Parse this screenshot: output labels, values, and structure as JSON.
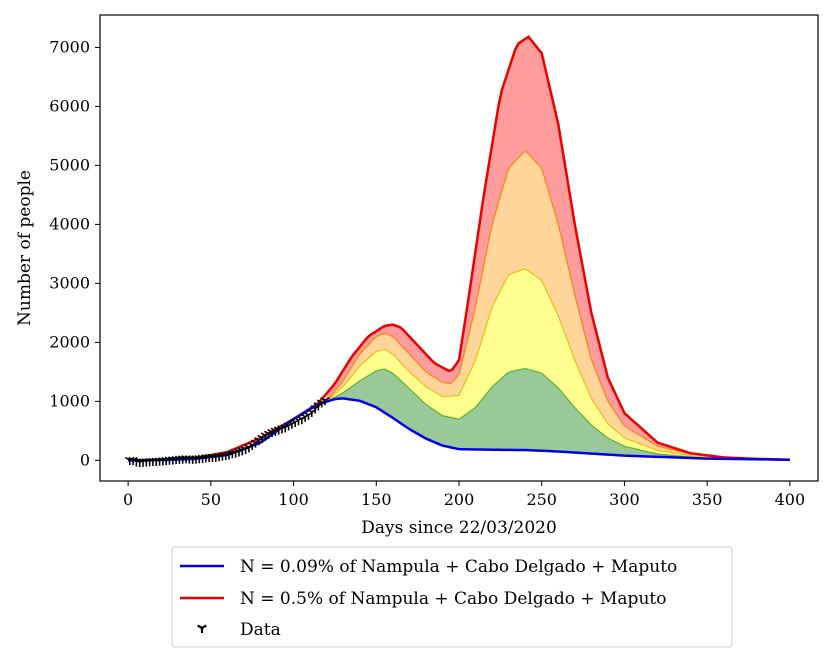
{
  "chart_data": {
    "type": "area",
    "title": "",
    "xlabel": "Days since 22/03/2020",
    "ylabel": "Number of people",
    "xlim": [
      -17,
      417
    ],
    "ylim": [
      -350,
      7550
    ],
    "xticks": [
      0,
      50,
      100,
      150,
      200,
      250,
      300,
      350,
      400
    ],
    "yticks": [
      0,
      1000,
      2000,
      3000,
      4000,
      5000,
      6000,
      7000
    ],
    "grid": false,
    "legend_position": "bottom-center",
    "series": [
      {
        "name": "N = 0.09% of Nampula + Cabo Delgado + Maputo",
        "color": "#0000ee",
        "x": [
          0,
          20,
          40,
          60,
          80,
          100,
          115,
          125,
          130,
          140,
          150,
          160,
          170,
          180,
          190,
          200,
          220,
          240,
          260,
          300,
          350,
          400
        ],
        "values": [
          0,
          5,
          25,
          90,
          300,
          700,
          950,
          1040,
          1050,
          1010,
          900,
          720,
          530,
          370,
          250,
          190,
          180,
          175,
          150,
          80,
          30,
          10
        ]
      },
      {
        "name": "N = 0.5% of Nampula + Cabo Delgado + Maputo",
        "color": "#ee0000",
        "x": [
          0,
          20,
          40,
          60,
          80,
          100,
          115,
          125,
          135,
          145,
          155,
          160,
          165,
          175,
          185,
          195,
          200,
          205,
          215,
          225,
          235,
          242,
          250,
          260,
          270,
          280,
          290,
          300,
          320,
          340,
          360,
          380,
          400
        ],
        "values": [
          0,
          10,
          40,
          140,
          380,
          700,
          970,
          1300,
          1750,
          2100,
          2280,
          2300,
          2250,
          1950,
          1650,
          1500,
          1700,
          2600,
          4500,
          6200,
          7050,
          7180,
          6900,
          5700,
          4000,
          2500,
          1400,
          800,
          300,
          120,
          50,
          25,
          10
        ]
      }
    ],
    "bands": [
      {
        "name": "band_green",
        "color": "#66b366",
        "x": [
          120,
          130,
          140,
          150,
          155,
          160,
          170,
          180,
          190,
          200,
          210,
          220,
          230,
          240,
          250,
          260,
          270,
          280,
          290,
          300,
          320,
          340,
          360,
          380,
          400
        ],
        "values": [
          1000,
          1150,
          1350,
          1520,
          1550,
          1480,
          1220,
          950,
          760,
          700,
          900,
          1250,
          1500,
          1560,
          1480,
          1230,
          900,
          600,
          380,
          240,
          110,
          60,
          30,
          20,
          10
        ]
      },
      {
        "name": "band_yellow",
        "color": "#ffff66",
        "x": [
          120,
          130,
          140,
          150,
          155,
          160,
          170,
          180,
          190,
          200,
          210,
          220,
          230,
          240,
          250,
          260,
          270,
          280,
          290,
          300,
          320,
          340,
          360,
          380,
          400
        ],
        "values": [
          1000,
          1250,
          1600,
          1850,
          1880,
          1800,
          1500,
          1250,
          1080,
          1100,
          1700,
          2600,
          3150,
          3250,
          3050,
          2450,
          1700,
          1050,
          620,
          380,
          170,
          80,
          40,
          25,
          10
        ]
      },
      {
        "name": "band_orange",
        "color": "#ffc266",
        "x": [
          120,
          130,
          140,
          150,
          155,
          160,
          170,
          180,
          190,
          195,
          200,
          210,
          220,
          230,
          240,
          250,
          260,
          270,
          280,
          290,
          300,
          320,
          340,
          360,
          380,
          400
        ],
        "values": [
          1000,
          1350,
          1800,
          2100,
          2150,
          2100,
          1800,
          1500,
          1320,
          1300,
          1450,
          2600,
          4000,
          4950,
          5250,
          4950,
          4000,
          2800,
          1700,
          1000,
          580,
          240,
          110,
          50,
          30,
          10
        ]
      }
    ],
    "data_points": {
      "name": "Data",
      "marker": "tri_down",
      "color": "#000000",
      "x": [
        1,
        3,
        5,
        7,
        9,
        11,
        13,
        15,
        17,
        19,
        21,
        23,
        25,
        27,
        29,
        31,
        33,
        35,
        37,
        39,
        41,
        43,
        45,
        47,
        49,
        51,
        53,
        55,
        57,
        59,
        61,
        63,
        65,
        67,
        69,
        71,
        73,
        75,
        77,
        79,
        81,
        83,
        85,
        87,
        89,
        91,
        93,
        95,
        97,
        99,
        101,
        103,
        105,
        107,
        109,
        111,
        113,
        115,
        117,
        119
      ],
      "values": [
        5,
        5,
        -20,
        -30,
        -25,
        -20,
        -15,
        -10,
        -10,
        -5,
        0,
        5,
        10,
        15,
        20,
        25,
        30,
        35,
        30,
        25,
        30,
        35,
        40,
        50,
        55,
        60,
        60,
        70,
        80,
        90,
        100,
        120,
        130,
        150,
        170,
        190,
        220,
        260,
        300,
        340,
        380,
        420,
        450,
        480,
        500,
        520,
        540,
        560,
        590,
        620,
        650,
        680,
        700,
        740,
        770,
        820,
        880,
        930,
        980,
        1020
      ]
    }
  }
}
